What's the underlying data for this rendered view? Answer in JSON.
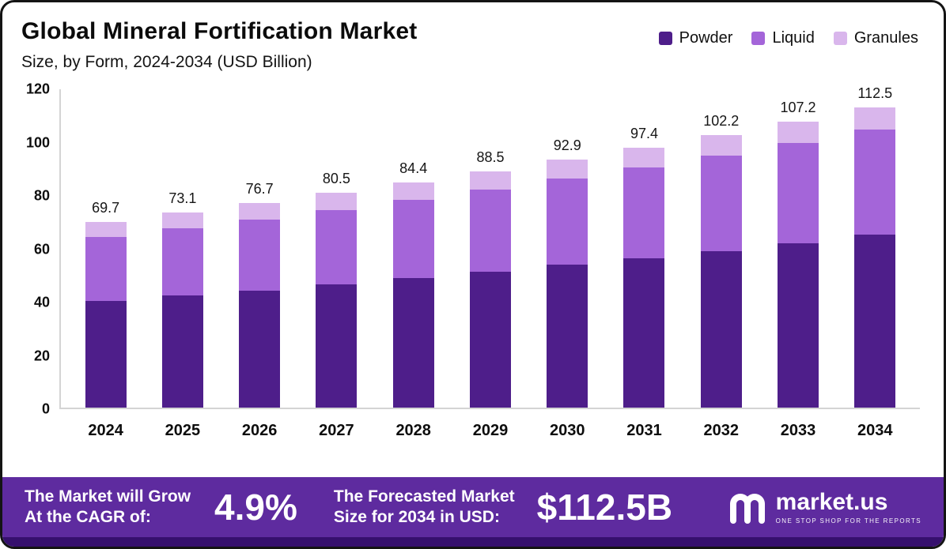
{
  "header": {
    "title": "Global Mineral Fortification Market",
    "subtitle": "Size, by Form, 2024-2034 (USD Billion)"
  },
  "legend": [
    {
      "label": "Powder",
      "color": "#4e1e8a"
    },
    {
      "label": "Liquid",
      "color": "#a465d9"
    },
    {
      "label": "Granules",
      "color": "#d9b6ec"
    }
  ],
  "chart_data": {
    "type": "bar",
    "stacked": true,
    "title": "Global Mineral Fortification Market Size, by Form, 2024-2034 (USD Billion)",
    "xlabel": "",
    "ylabel": "",
    "ylim": [
      0,
      120
    ],
    "y_ticks": [
      0,
      20,
      40,
      60,
      80,
      100,
      120
    ],
    "grid": false,
    "legend_position": "top-right",
    "categories": [
      "2024",
      "2025",
      "2026",
      "2027",
      "2028",
      "2029",
      "2030",
      "2031",
      "2032",
      "2033",
      "2034"
    ],
    "series": [
      {
        "name": "Powder",
        "color": "#4e1e8a",
        "values": [
          40.0,
          42.0,
          44.0,
          46.2,
          48.5,
          51.0,
          53.5,
          56.0,
          58.8,
          61.7,
          64.8
        ]
      },
      {
        "name": "Liquid",
        "color": "#a465d9",
        "values": [
          24.0,
          25.3,
          26.6,
          28.0,
          29.4,
          30.9,
          32.4,
          34.1,
          35.8,
          37.5,
          39.4
        ]
      },
      {
        "name": "Granules",
        "color": "#d9b6ec",
        "values": [
          5.7,
          5.8,
          6.1,
          6.3,
          6.5,
          6.6,
          7.0,
          7.3,
          7.6,
          8.0,
          8.3
        ]
      }
    ],
    "totals": [
      69.7,
      73.1,
      76.7,
      80.5,
      84.4,
      88.5,
      92.9,
      97.4,
      102.2,
      107.2,
      112.5
    ]
  },
  "footer": {
    "cagr_label_line1": "The Market will Grow",
    "cagr_label_line2": "At the CAGR of:",
    "cagr_value": "4.9%",
    "forecast_label_line1": "The Forecasted Market",
    "forecast_label_line2": "Size for 2034 in USD:",
    "forecast_value": "$112.5B",
    "brand": "market.us",
    "brand_tagline": "ONE STOP SHOP FOR THE REPORTS"
  },
  "colors": {
    "footer_background": "#5e2b9f",
    "footer_strip": "#36106e",
    "axis_line": "#d4d4d4",
    "text": "#0b0b0b"
  }
}
